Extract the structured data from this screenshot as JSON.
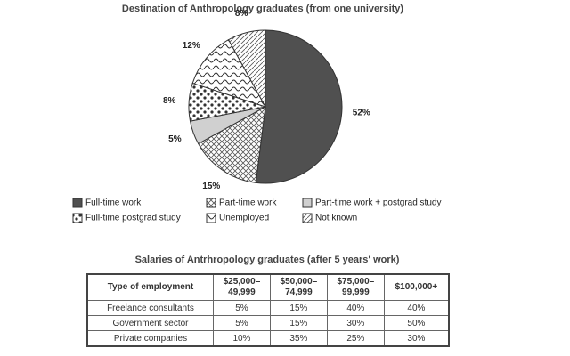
{
  "chart_data": {
    "type": "pie",
    "title": "Destination of Anthropology graduates (from one university)",
    "categories": [
      "Full-time work",
      "Part-time work",
      "Part-time work + postgrad study",
      "Full-time postgrad study",
      "Unemployed",
      "Not known"
    ],
    "values": [
      52,
      15,
      5,
      8,
      12,
      8
    ],
    "value_labels": [
      "52%",
      "15%",
      "5%",
      "8%",
      "12%",
      "8%"
    ]
  },
  "table": {
    "title": "Salaries of Antrhropology graduates (after 5 years' work)",
    "header": [
      "Type of employment",
      "$25,000–\n49,999",
      "$50,000–\n74,999",
      "$75,000–\n99,999",
      "$100,000+"
    ],
    "rows": [
      [
        "Freelance consultants",
        "5%",
        "15%",
        "40%",
        "40%"
      ],
      [
        "Government sector",
        "5%",
        "15%",
        "30%",
        "50%"
      ],
      [
        "Private companies",
        "10%",
        "35%",
        "25%",
        "30%"
      ]
    ]
  }
}
